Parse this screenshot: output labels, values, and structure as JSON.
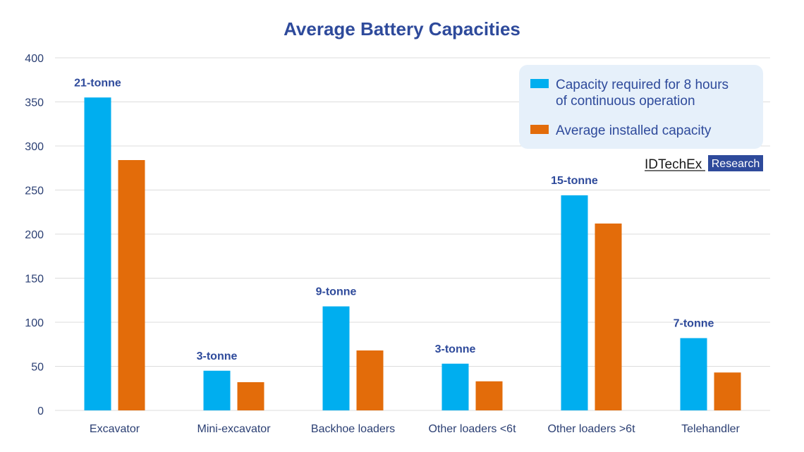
{
  "chart_data": {
    "type": "bar",
    "title": "Average Battery Capacities",
    "xlabel": "",
    "ylabel": "",
    "categories": [
      "Excavator",
      "Mini-excavator",
      "Backhoe loaders",
      "Other loaders <6t",
      "Other loaders >6t",
      "Telehandler"
    ],
    "series": [
      {
        "name": "Capacity required for 8 hours of continuous operation",
        "color": "#00AEEF",
        "values": [
          355,
          45,
          118,
          53,
          244,
          82
        ]
      },
      {
        "name": "Average installed capacity",
        "color": "#E36C0A",
        "values": [
          284,
          32,
          68,
          33,
          212,
          43
        ]
      }
    ],
    "annotations": [
      "21-tonne",
      "3-tonne",
      "9-tonne",
      "3-tonne",
      "15-tonne",
      "7-tonne"
    ],
    "ylim": [
      0,
      400
    ],
    "yticks": [
      0,
      50,
      100,
      150,
      200,
      250,
      300,
      350,
      400
    ],
    "grid": true,
    "legend_position": "top-right"
  },
  "legend": {
    "line1": "Capacity required for 8 hours",
    "line2": "of continuous operation",
    "item2": "Average installed capacity"
  },
  "logo": {
    "brand": "IDTechEx",
    "tag": "Research"
  }
}
